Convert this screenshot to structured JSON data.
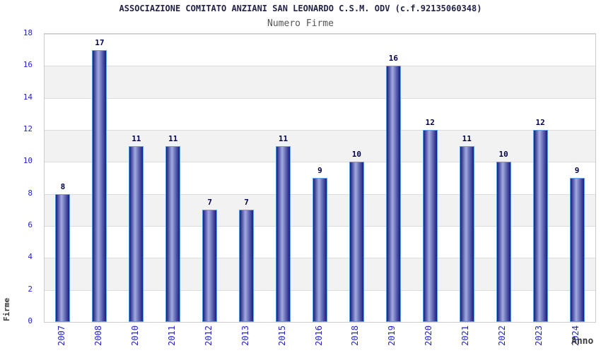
{
  "chart_data": {
    "type": "bar",
    "title": "ASSOCIAZIONE COMITATO ANZIANI SAN LEONARDO C.S.M. ODV (c.f.92135060348)",
    "subtitle": "Numero Firme",
    "xlabel": "Anno",
    "ylabel": "Firme",
    "categories": [
      "2007",
      "2008",
      "2010",
      "2011",
      "2012",
      "2013",
      "2015",
      "2016",
      "2018",
      "2019",
      "2020",
      "2021",
      "2022",
      "2023",
      "2024"
    ],
    "values": [
      8,
      17,
      11,
      11,
      7,
      7,
      11,
      9,
      10,
      16,
      12,
      11,
      10,
      12,
      9
    ],
    "ylim": [
      0,
      18
    ],
    "ytick_step": 2,
    "grid": true,
    "legend_position": "none",
    "colors": {
      "title": "#232347",
      "subtitle": "#555555",
      "tick_label": "#2424cc",
      "value_label": "#00004d",
      "axis_title": "#3a3a3a",
      "bar_edge": "#64a0e8",
      "bar_dark": "#1b1b80",
      "bar_light": "#a2abdf",
      "band_alt": "#f2f2f2",
      "gridline": "#dcdcdc",
      "plot_border": "#cccccc"
    }
  }
}
